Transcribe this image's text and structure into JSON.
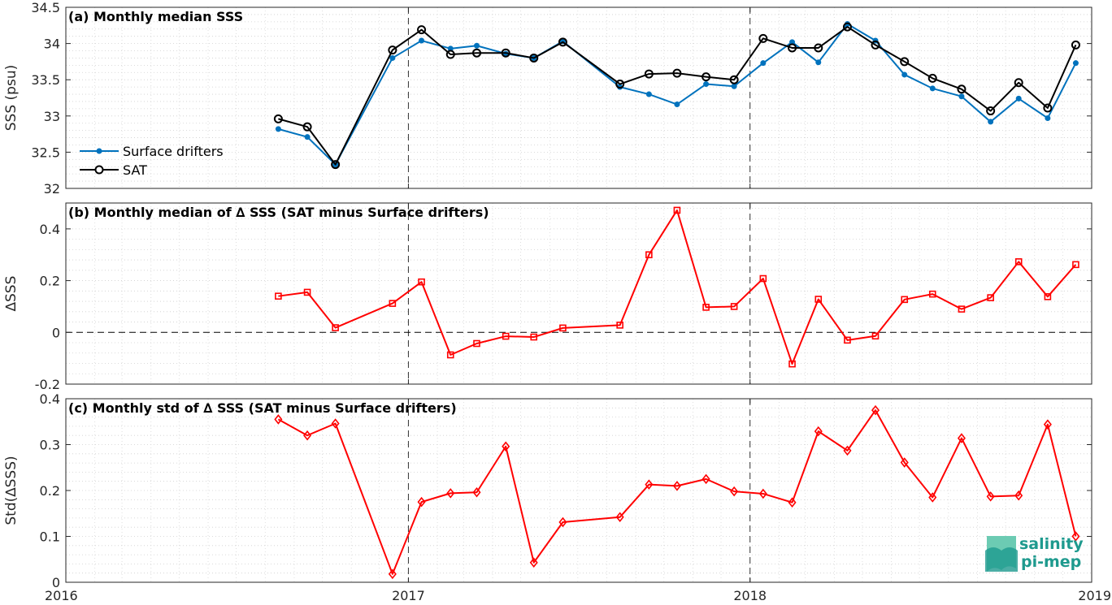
{
  "x_ticks": [
    "2016",
    "2017",
    "2018",
    "2019"
  ],
  "logo": {
    "line1": "salinity",
    "line2": "pi-mep",
    "color": "#1e9a8e"
  },
  "colors": {
    "drifters": "#0072bd",
    "sat": "#000000",
    "delta": "#ff0000"
  },
  "chart_data": [
    {
      "type": "line",
      "title": "(a) Monthly median SSS",
      "ylabel": "SSS (psu)",
      "ylim": [
        32,
        34.5
      ],
      "yticks": [
        "32",
        "32.5",
        "33",
        "33.5",
        "34",
        "34.5"
      ],
      "grid": true,
      "legend_position": "left",
      "x": [
        "2016-08",
        "2016-09",
        "2016-10",
        "2016-12",
        "2017-01",
        "2017-02",
        "2017-03",
        "2017-04",
        "2017-05",
        "2017-06",
        "2017-08",
        "2017-09",
        "2017-10",
        "2017-11",
        "2017-12",
        "2018-01",
        "2018-02",
        "2018-03",
        "2018-04",
        "2018-05",
        "2018-06",
        "2018-07",
        "2018-08",
        "2018-09",
        "2018-10",
        "2018-11",
        "2018-12"
      ],
      "series": [
        {
          "name": "Surface drifters",
          "marker": "dot",
          "values": [
            32.82,
            32.71,
            32.33,
            33.8,
            34.04,
            33.93,
            33.97,
            33.86,
            33.8,
            34.03,
            33.4,
            33.3,
            33.16,
            33.44,
            33.41,
            33.73,
            34.02,
            33.74,
            34.27,
            34.04,
            33.57,
            33.38,
            33.27,
            32.92,
            33.24,
            32.97,
            33.73
          ]
        },
        {
          "name": "SAT",
          "marker": "circle",
          "values": [
            32.96,
            32.85,
            32.33,
            33.91,
            34.19,
            33.85,
            33.87,
            33.87,
            33.8,
            34.02,
            33.44,
            33.58,
            33.59,
            33.54,
            33.5,
            34.07,
            33.94,
            33.94,
            34.23,
            33.98,
            33.75,
            33.52,
            33.37,
            33.07,
            33.46,
            33.11,
            33.98
          ]
        }
      ]
    },
    {
      "type": "line",
      "title": "(b) Monthly median of ∆ SSS (SAT minus Surface drifters)",
      "ylabel": "∆SSS",
      "ylim": [
        -0.2,
        0.5
      ],
      "yticks": [
        "-0.2",
        "0",
        "0.2",
        "0.4"
      ],
      "grid": true,
      "reference_line": 0,
      "x": [
        "2016-08",
        "2016-09",
        "2016-10",
        "2016-12",
        "2017-01",
        "2017-02",
        "2017-03",
        "2017-04",
        "2017-05",
        "2017-06",
        "2017-08",
        "2017-09",
        "2017-10",
        "2017-11",
        "2017-12",
        "2018-01",
        "2018-02",
        "2018-03",
        "2018-04",
        "2018-05",
        "2018-06",
        "2018-07",
        "2018-08",
        "2018-09",
        "2018-10",
        "2018-11",
        "2018-12"
      ],
      "series": [
        {
          "marker": "square",
          "values": [
            0.14,
            0.155,
            0.018,
            0.112,
            0.195,
            -0.087,
            -0.043,
            -0.015,
            -0.018,
            0.017,
            0.028,
            0.3,
            0.472,
            0.097,
            0.1,
            0.208,
            -0.122,
            0.128,
            -0.03,
            -0.014,
            0.127,
            0.148,
            0.09,
            0.134,
            0.273,
            0.138,
            0.262
          ]
        }
      ]
    },
    {
      "type": "line",
      "title": "(c) Monthly std of ∆ SSS (SAT minus Surface drifters)",
      "ylabel": "Std(∆SSS)",
      "ylim": [
        0,
        0.4
      ],
      "yticks": [
        "0",
        "0.1",
        "0.2",
        "0.3",
        "0.4"
      ],
      "grid": true,
      "x": [
        "2016-08",
        "2016-09",
        "2016-10",
        "2016-12",
        "2017-01",
        "2017-02",
        "2017-03",
        "2017-04",
        "2017-05",
        "2017-06",
        "2017-08",
        "2017-09",
        "2017-10",
        "2017-11",
        "2017-12",
        "2018-01",
        "2018-02",
        "2018-03",
        "2018-04",
        "2018-05",
        "2018-06",
        "2018-07",
        "2018-08",
        "2018-09",
        "2018-10",
        "2018-11",
        "2018-12"
      ],
      "series": [
        {
          "marker": "diamond",
          "values": [
            0.355,
            0.32,
            0.346,
            0.018,
            0.175,
            0.194,
            0.196,
            0.296,
            0.043,
            0.131,
            0.142,
            0.213,
            0.21,
            0.225,
            0.198,
            0.193,
            0.174,
            0.329,
            0.287,
            0.375,
            0.261,
            0.185,
            0.314,
            0.187,
            0.189,
            0.344,
            0.1
          ]
        }
      ]
    }
  ]
}
